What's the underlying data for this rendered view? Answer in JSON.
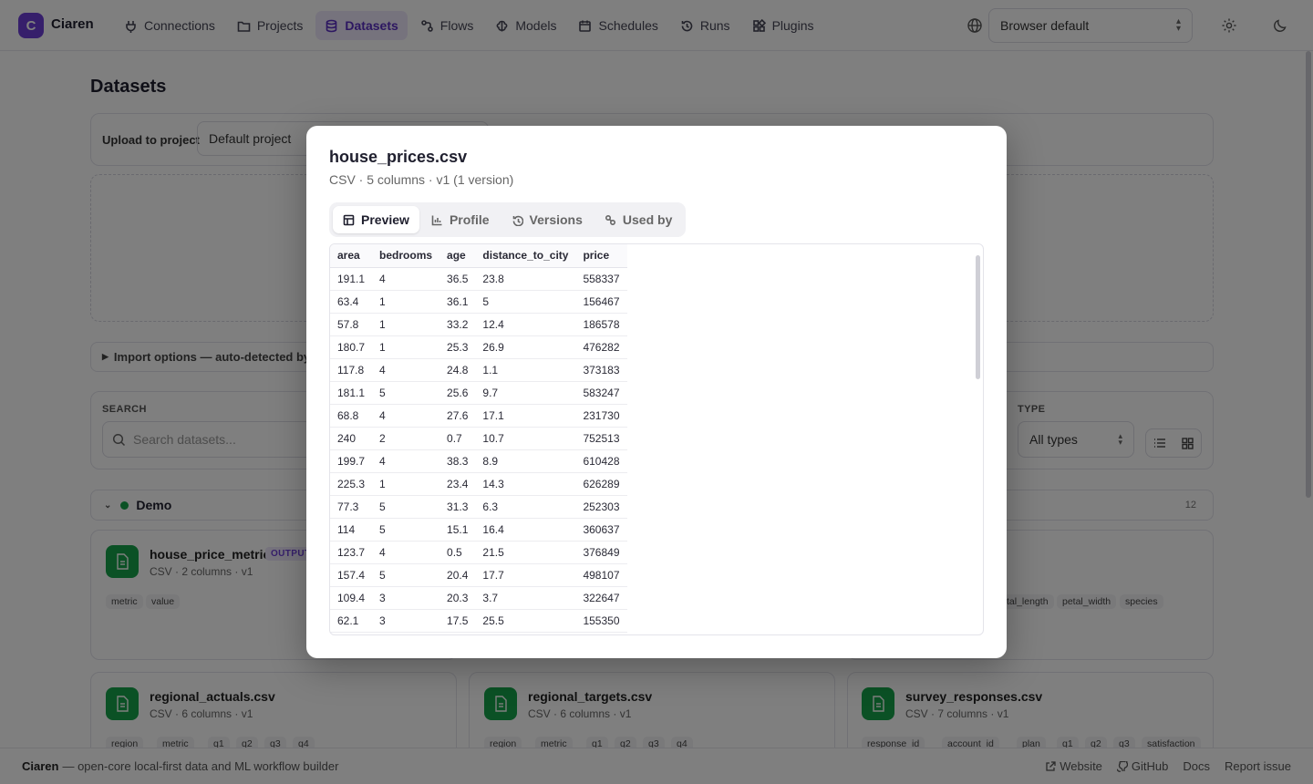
{
  "app": {
    "logo_letter": "C",
    "name": "Ciaren"
  },
  "nav": [
    {
      "label": "Connections",
      "icon": "plug-icon"
    },
    {
      "label": "Projects",
      "icon": "folder-icon"
    },
    {
      "label": "Datasets",
      "icon": "database-icon",
      "active": true
    },
    {
      "label": "Flows",
      "icon": "flow-icon"
    },
    {
      "label": "Models",
      "icon": "brain-icon"
    },
    {
      "label": "Schedules",
      "icon": "calendar-icon"
    },
    {
      "label": "Runs",
      "icon": "history-icon"
    },
    {
      "label": "Plugins",
      "icon": "puzzle-icon"
    }
  ],
  "language": {
    "value": "Browser default"
  },
  "page": {
    "title": "Datasets",
    "upload_label": "Upload to project",
    "project_value": "Default project",
    "import_options": "Import options — auto-detected by de",
    "search_label": "SEARCH",
    "search_placeholder": "Search datasets...",
    "type_label": "TYPE",
    "type_value": "All types",
    "group": {
      "name": "Demo",
      "count": "12"
    }
  },
  "cards": [
    {
      "title": "house_price_metrics",
      "badge": "OUTPUT",
      "sub": "CSV · 2 columns · v1",
      "tags": [
        "metric",
        "value"
      ]
    },
    {
      "title": "",
      "sub": "",
      "tags": [
        "tal_length",
        "petal_width",
        "species"
      ]
    },
    {
      "title": "regional_actuals.csv",
      "sub": "CSV · 6 columns · v1",
      "tags": [
        "region",
        "metric",
        "q1",
        "q2",
        "q3",
        "q4"
      ]
    },
    {
      "title": "regional_targets.csv",
      "sub": "CSV · 6 columns · v1",
      "tags": [
        "region",
        "metric",
        "q1",
        "q2",
        "q3",
        "q4"
      ]
    },
    {
      "title": "survey_responses.csv",
      "sub": "CSV · 7 columns · v1",
      "tags": [
        "response_id",
        "account_id",
        "plan",
        "q1",
        "q2",
        "q3",
        "satisfaction"
      ]
    }
  ],
  "footer": {
    "brand": "Ciaren",
    "tagline": "— open-core local-first data and ML workflow builder",
    "links": [
      "Website",
      "GitHub",
      "Docs",
      "Report issue"
    ]
  },
  "modal": {
    "title": "house_prices.csv",
    "subtitle": "CSV · 5 columns · v1 (1 version)",
    "tabs": [
      {
        "label": "Preview",
        "icon": "table-icon",
        "active": true
      },
      {
        "label": "Profile",
        "icon": "bar-chart-icon"
      },
      {
        "label": "Versions",
        "icon": "history-icon"
      },
      {
        "label": "Used by",
        "icon": "link-icon"
      }
    ],
    "columns": [
      "area",
      "bedrooms",
      "age",
      "distance_to_city",
      "price"
    ],
    "rows": [
      [
        "191.1",
        "4",
        "36.5",
        "23.8",
        "558337"
      ],
      [
        "63.4",
        "1",
        "36.1",
        "5",
        "156467"
      ],
      [
        "57.8",
        "1",
        "33.2",
        "12.4",
        "186578"
      ],
      [
        "180.7",
        "1",
        "25.3",
        "26.9",
        "476282"
      ],
      [
        "117.8",
        "4",
        "24.8",
        "1.1",
        "373183"
      ],
      [
        "181.1",
        "5",
        "25.6",
        "9.7",
        "583247"
      ],
      [
        "68.8",
        "4",
        "27.6",
        "17.1",
        "231730"
      ],
      [
        "240",
        "2",
        "0.7",
        "10.7",
        "752513"
      ],
      [
        "199.7",
        "4",
        "38.3",
        "8.9",
        "610428"
      ],
      [
        "225.3",
        "1",
        "23.4",
        "14.3",
        "626289"
      ],
      [
        "77.3",
        "5",
        "31.3",
        "6.3",
        "252303"
      ],
      [
        "114",
        "5",
        "15.1",
        "16.4",
        "360637"
      ],
      [
        "123.7",
        "4",
        "0.5",
        "21.5",
        "376849"
      ],
      [
        "157.4",
        "5",
        "20.4",
        "17.7",
        "498107"
      ],
      [
        "109.4",
        "3",
        "20.3",
        "3.7",
        "322647"
      ],
      [
        "62.1",
        "3",
        "17.5",
        "25.5",
        "155350"
      ]
    ]
  }
}
